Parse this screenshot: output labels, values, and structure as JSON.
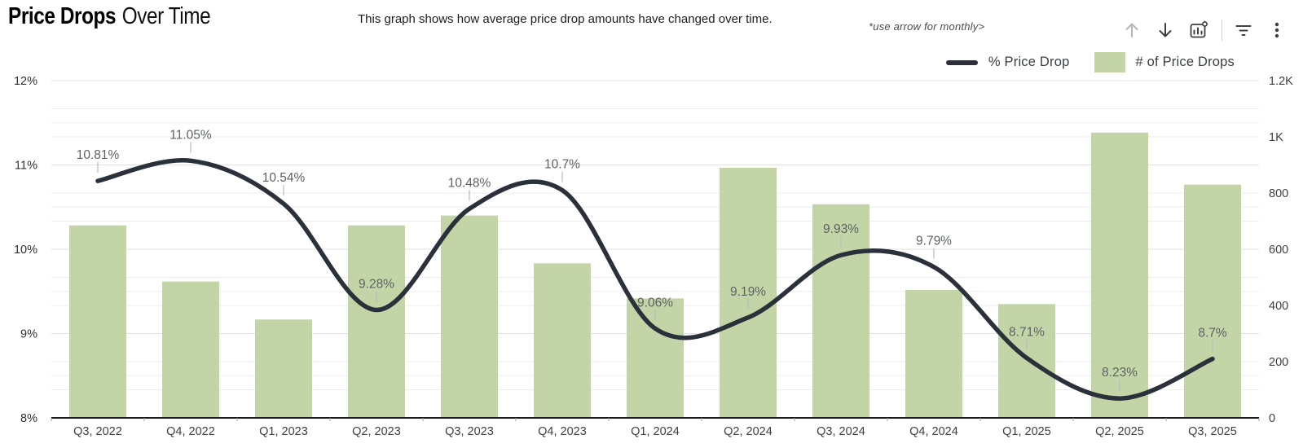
{
  "header": {
    "title_primary": "Price Drops",
    "title_secondary": "Over Time",
    "subtitle": "This graph shows how average price drop amounts have changed over time.",
    "annotation": "*use arrow for monthly>"
  },
  "toolbar": {
    "icons": [
      "arrow-up",
      "arrow-down",
      "chart-settings",
      "filter",
      "more-options"
    ]
  },
  "legend": {
    "items": [
      {
        "label": "% Price Drop",
        "type": "line",
        "color": "#2b313a"
      },
      {
        "label": "# of Price Drops",
        "type": "bar",
        "color": "#c3d5a6"
      }
    ]
  },
  "chart_data": {
    "type": "combo",
    "categories": [
      "Q3, 2022",
      "Q4, 2022",
      "Q1, 2023",
      "Q2, 2023",
      "Q3, 2023",
      "Q4, 2023",
      "Q1, 2024",
      "Q2, 2024",
      "Q3, 2024",
      "Q4, 2024",
      "Q1, 2025",
      "Q2, 2025",
      "Q3, 2025"
    ],
    "series": [
      {
        "name": "% Price Drop",
        "type": "line",
        "axis": "left",
        "unit": "%",
        "color": "#2b313a",
        "values": [
          10.81,
          11.05,
          10.54,
          9.28,
          10.48,
          10.7,
          9.06,
          9.19,
          9.93,
          9.79,
          8.71,
          8.23,
          8.7
        ],
        "data_labels": [
          "10.81%",
          "11.05%",
          "10.54%",
          "9.28%",
          "10.48%",
          "10.7%",
          "9.06%",
          "9.19%",
          "9.93%",
          "9.79%",
          "8.71%",
          "8.23%",
          "8.7%"
        ]
      },
      {
        "name": "# of Price Drops",
        "type": "bar",
        "axis": "right",
        "color": "#c3d5a6",
        "values": [
          685,
          485,
          350,
          685,
          720,
          550,
          425,
          890,
          760,
          455,
          405,
          1015,
          830
        ]
      }
    ],
    "left_axis": {
      "min": 8,
      "max": 12,
      "tick_labels": [
        "12%",
        "11%",
        "10%",
        "9%",
        "8%"
      ],
      "tick_values": [
        12,
        11,
        10,
        9,
        8
      ],
      "minor_step": 0.5
    },
    "right_axis": {
      "min": 0,
      "max": 1200,
      "tick_labels": [
        "1.2K",
        "1K",
        "800",
        "600",
        "400",
        "200",
        "0"
      ],
      "tick_values": [
        1200,
        1000,
        800,
        600,
        400,
        200,
        0
      ],
      "minor_step": 100
    },
    "grid": true,
    "legend_position": "top-right",
    "smooth_line": true
  }
}
